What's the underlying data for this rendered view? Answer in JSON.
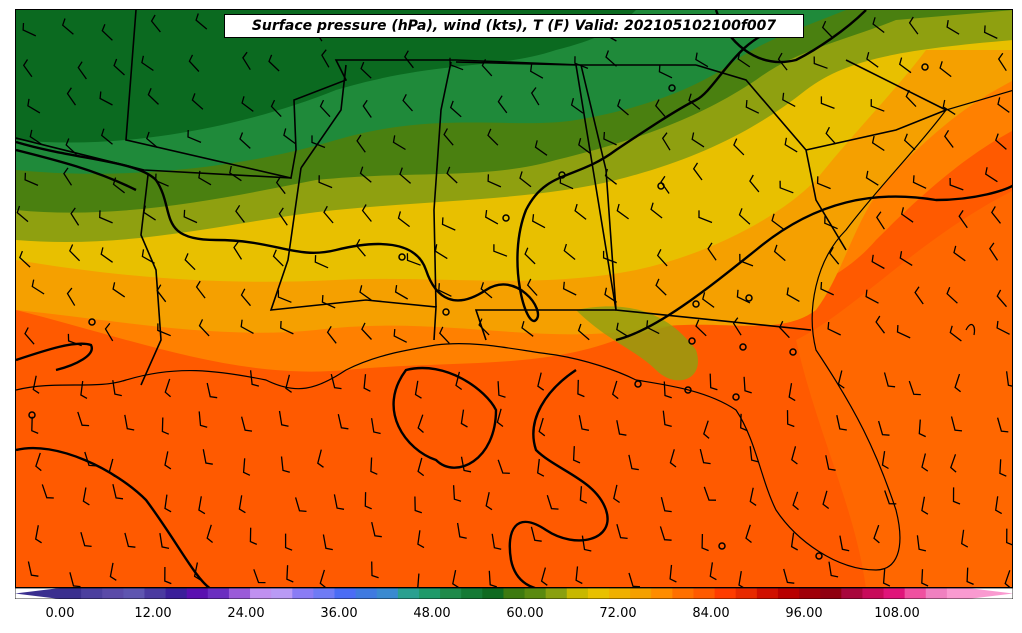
{
  "title": "Surface pressure (hPa), wind (kts), T (F) Valid: 202105102100f007",
  "colorbar": {
    "tick_labels": [
      "0.00",
      "12.00",
      "24.00",
      "36.00",
      "48.00",
      "60.00",
      "72.00",
      "84.00",
      "96.00",
      "108.00"
    ],
    "colors": [
      "#3a2f8f",
      "#4b3f9e",
      "#5a4aa8",
      "#5e55b0",
      "#4a3aa0",
      "#3b1f9a",
      "#5a10b0",
      "#6b2ec0",
      "#9a5ad8",
      "#c090f0",
      "#b99af5",
      "#8a7cf5",
      "#6f7bf5",
      "#4a6cf5",
      "#3f7ae0",
      "#3a8ad0",
      "#2aa090",
      "#1f9a6a",
      "#1f8a4a",
      "#157a35",
      "#0f6a20",
      "#3d7a10",
      "#5a8a10",
      "#8aa010",
      "#c8b800",
      "#e8c000",
      "#f0b000",
      "#f5a000",
      "#ff8c00",
      "#ff7000",
      "#ff5a00",
      "#ff3c00",
      "#e82a00",
      "#d01000",
      "#b80000",
      "#a00008",
      "#900010",
      "#a8063c",
      "#c80a5a",
      "#e0147a",
      "#f050a0",
      "#f080c0",
      "#fa9ad0"
    ],
    "extend_left_color": "#3a2f8f",
    "extend_right_color": "#fa9ad0"
  },
  "map": {
    "field": "2m temperature (F)",
    "region": "Southeastern United States and Gulf of Mexico",
    "colors": {
      "cold_green_dark": "#0b6a20",
      "green_mid": "#1f8a3a",
      "green_olive": "#4a8010",
      "olive": "#8fa010",
      "yellow": "#e8c000",
      "orange_light": "#f5a000",
      "orange": "#ff8000",
      "orange_red": "#ff5a00"
    }
  }
}
